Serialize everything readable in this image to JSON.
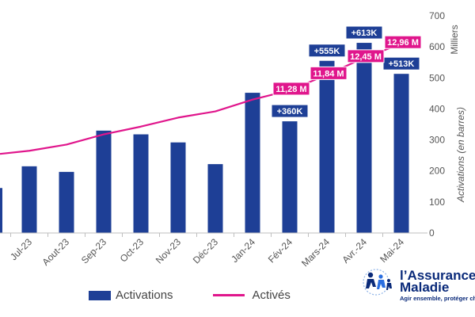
{
  "chart_data": {
    "type": "bar",
    "categories": [
      "Jul-23",
      "Aout-23",
      "Sep-23",
      "Oct-23",
      "Nov-23",
      "Déc-23",
      "Jan-24",
      "Fév-24",
      "Mars-24",
      "Avr.-24",
      "Mai-24"
    ],
    "partial_first_bar_value": 145,
    "series": [
      {
        "name": "Activations",
        "type": "bar",
        "color": "#1e3f96",
        "values": [
          215,
          197,
          330,
          318,
          292,
          222,
          452,
          360,
          555,
          613,
          513
        ]
      },
      {
        "name": "Activés",
        "type": "line",
        "color": "#e0168c",
        "values": [
          265,
          285,
          318,
          343,
          372,
          392,
          430,
          460,
          510,
          565,
          610
        ]
      }
    ],
    "line_start_value": 255,
    "bar_labels": [
      {
        "index": 7,
        "text": "+360K"
      },
      {
        "index": 8,
        "text": "+555K"
      },
      {
        "index": 9,
        "text": "+613K"
      },
      {
        "index": 10,
        "text": "+513K"
      }
    ],
    "line_labels": [
      {
        "index": 7,
        "text": "11,28 M"
      },
      {
        "index": 8,
        "text": "11,84 M"
      },
      {
        "index": 9,
        "text": "12,45 M"
      },
      {
        "index": 10,
        "text": "12,96 M"
      }
    ],
    "y_axis": {
      "side": "right",
      "label": "Activations (en barres)",
      "unit": "Milliers",
      "ylim": [
        0,
        700
      ],
      "ticks": [
        "0",
        "100",
        "200",
        "300",
        "400",
        "500",
        "600",
        "700"
      ]
    },
    "grid": false,
    "legend": {
      "placement": "bottom",
      "items": [
        {
          "label": "Activations",
          "kind": "bar",
          "color": "#1e3f96"
        },
        {
          "label": "Activés",
          "kind": "line",
          "color": "#e0168c"
        }
      ]
    }
  },
  "logo": {
    "name_line1": "l’Assurance",
    "name_line2": "Maladie",
    "tagline": "Agir ensemble, protéger chacun"
  }
}
